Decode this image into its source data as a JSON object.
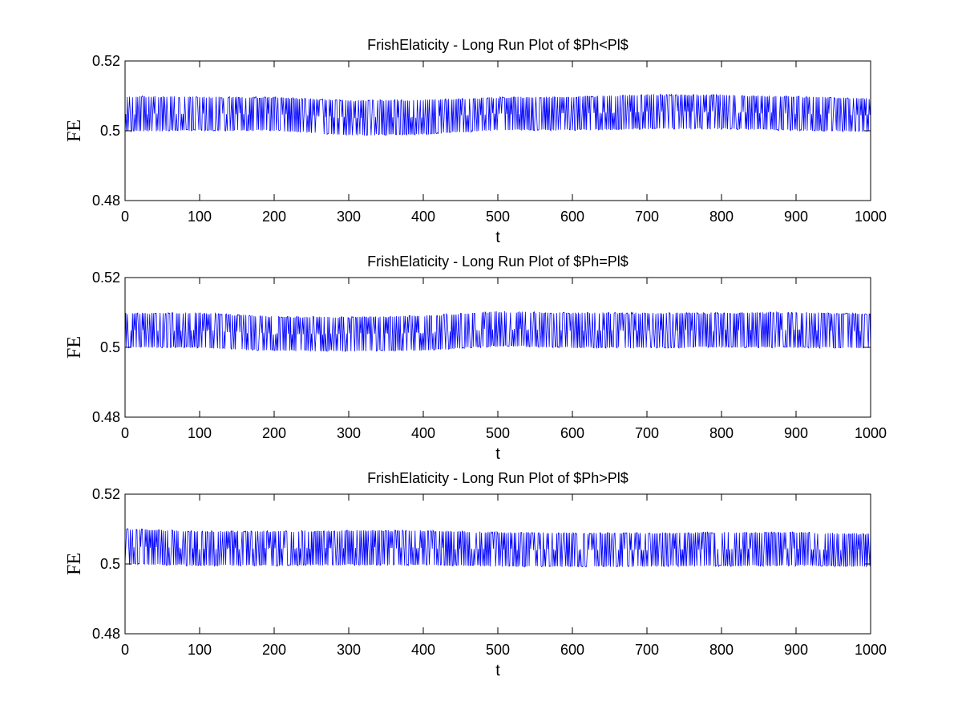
{
  "chart_data": [
    {
      "type": "line",
      "title": "FrishElaticity - Long Run Plot of $Ph<Pl$",
      "xlabel": "t",
      "ylabel": "FE",
      "xlim": [
        0,
        1000
      ],
      "ylim": [
        0.48,
        0.52
      ],
      "xticks": [
        0,
        100,
        200,
        300,
        400,
        500,
        600,
        700,
        800,
        900,
        1000
      ],
      "yticks": [
        0.48,
        0.5,
        0.52
      ],
      "xtick_labels": [
        "0",
        "100",
        "200",
        "300",
        "400",
        "500",
        "600",
        "700",
        "800",
        "900",
        "1000"
      ],
      "ytick_labels": [
        "0.48",
        "0.5",
        "0.52"
      ],
      "grid": false,
      "series": [
        {
          "color": "#0000ff",
          "style": "oscillating",
          "x": [
            0,
            100,
            200,
            300,
            400,
            500,
            600,
            700,
            800,
            900,
            1000
          ],
          "upper": [
            0.5098,
            0.5096,
            0.5095,
            0.5086,
            0.5088,
            0.5095,
            0.5097,
            0.5103,
            0.5102,
            0.5097,
            0.5092
          ],
          "lower": [
            0.4999,
            0.5002,
            0.5001,
            0.4988,
            0.499,
            0.5003,
            0.5002,
            0.5006,
            0.5006,
            0.5002,
            0.4998
          ]
        }
      ]
    },
    {
      "type": "line",
      "title": "FrishElaticity - Long Run Plot of $Ph=Pl$",
      "xlabel": "t",
      "ylabel": "FE",
      "xlim": [
        0,
        1000
      ],
      "ylim": [
        0.48,
        0.52
      ],
      "xticks": [
        0,
        100,
        200,
        300,
        400,
        500,
        600,
        700,
        800,
        900,
        1000
      ],
      "yticks": [
        0.48,
        0.5,
        0.52
      ],
      "xtick_labels": [
        "0",
        "100",
        "200",
        "300",
        "400",
        "500",
        "600",
        "700",
        "800",
        "900",
        "1000"
      ],
      "ytick_labels": [
        "0.48",
        "0.5",
        "0.52"
      ],
      "grid": false,
      "series": [
        {
          "color": "#0000ff",
          "style": "oscillating",
          "x": [
            0,
            100,
            200,
            300,
            400,
            500,
            600,
            700,
            800,
            900,
            1000
          ],
          "upper": [
            0.5097,
            0.5098,
            0.5087,
            0.5086,
            0.509,
            0.5102,
            0.5098,
            0.5098,
            0.5098,
            0.51,
            0.5095
          ],
          "lower": [
            0.5,
            0.5,
            0.4991,
            0.499,
            0.4992,
            0.5004,
            0.5,
            0.4999,
            0.5001,
            0.5,
            0.4999
          ]
        }
      ]
    },
    {
      "type": "line",
      "title": "FrishElaticity - Long Run Plot of $Ph>Pl$",
      "xlabel": "t",
      "ylabel": "FE",
      "xlim": [
        0,
        1000
      ],
      "ylim": [
        0.48,
        0.52
      ],
      "xticks": [
        0,
        100,
        200,
        300,
        400,
        500,
        600,
        700,
        800,
        900,
        1000
      ],
      "yticks": [
        0.48,
        0.5,
        0.52
      ],
      "xtick_labels": [
        "0",
        "100",
        "200",
        "300",
        "400",
        "500",
        "600",
        "700",
        "800",
        "900",
        "1000"
      ],
      "ytick_labels": [
        "0.48",
        "0.5",
        "0.52"
      ],
      "grid": false,
      "series": [
        {
          "color": "#0000ff",
          "style": "oscillating",
          "x": [
            0,
            100,
            200,
            300,
            400,
            500,
            600,
            700,
            800,
            900,
            1000
          ],
          "upper": [
            0.51,
            0.5093,
            0.5093,
            0.5095,
            0.5095,
            0.509,
            0.5088,
            0.5088,
            0.509,
            0.509,
            0.5085
          ],
          "lower": [
            0.5,
            0.4996,
            0.4996,
            0.4998,
            0.4997,
            0.4994,
            0.4993,
            0.4994,
            0.4995,
            0.4996,
            0.4993
          ]
        }
      ]
    }
  ]
}
